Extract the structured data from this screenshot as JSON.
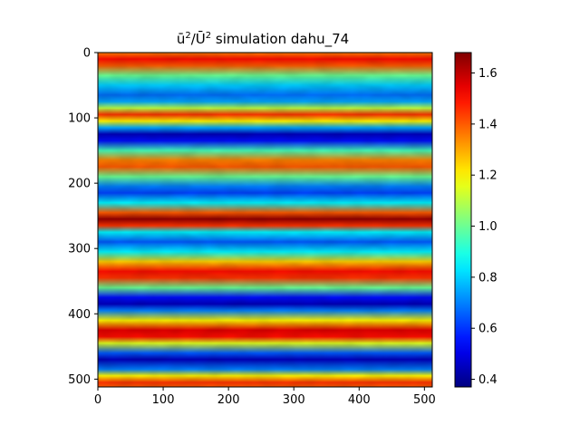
{
  "chart_data": {
    "type": "heatmap",
    "title": "ū²/Ū² simulation dahu_74",
    "title_parts": {
      "sym1": "ū",
      "sup1": "2",
      "slash": "/",
      "sym2": "Ū",
      "sup2": "2",
      "rest": " simulation dahu_74"
    },
    "xlabel": "",
    "ylabel": "",
    "x_range": [
      0,
      512
    ],
    "y_range": [
      0,
      512
    ],
    "y_inverted": true,
    "x_ticks": [
      "0",
      "100",
      "200",
      "300",
      "400",
      "500"
    ],
    "y_ticks": [
      "0",
      "100",
      "200",
      "300",
      "400",
      "500"
    ],
    "colormap": "jet",
    "colorbar": {
      "vmin": 0.37,
      "vmax": 1.68,
      "ticks": [
        "0.4",
        "0.6",
        "0.8",
        "1.0",
        "1.2",
        "1.4",
        "1.6"
      ],
      "location": "right"
    },
    "band_profile": {
      "description_of_values": "approximate field value as function of y (row), nearly uniform in x",
      "y": [
        0,
        10,
        20,
        35,
        50,
        65,
        75,
        85,
        95,
        105,
        115,
        125,
        135,
        150,
        165,
        175,
        190,
        205,
        215,
        230,
        245,
        255,
        265,
        275,
        290,
        305,
        320,
        335,
        345,
        360,
        375,
        385,
        395,
        410,
        425,
        435,
        445,
        460,
        470,
        485,
        495,
        505,
        512
      ],
      "values": [
        1.35,
        1.5,
        1.4,
        1.0,
        0.8,
        0.68,
        0.75,
        1.1,
        1.45,
        1.2,
        0.75,
        0.45,
        0.55,
        0.95,
        1.35,
        1.4,
        1.0,
        0.7,
        0.62,
        0.85,
        1.4,
        1.65,
        1.45,
        0.85,
        0.65,
        0.85,
        1.25,
        1.5,
        1.45,
        1.0,
        0.55,
        0.45,
        0.7,
        1.2,
        1.55,
        1.5,
        1.15,
        0.65,
        0.45,
        0.7,
        1.2,
        1.45,
        1.4
      ]
    },
    "grid": false
  }
}
